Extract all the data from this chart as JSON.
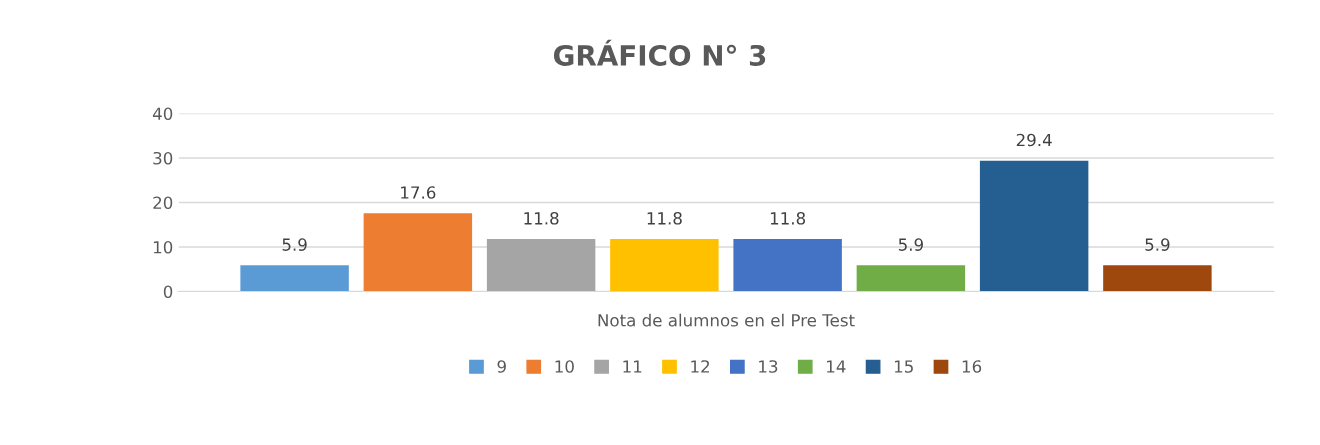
{
  "chart_data": {
    "type": "bar",
    "title": "GRÁFICO N° 3",
    "categories": [
      "Nota de alumnos en el Pre Test"
    ],
    "series": [
      {
        "name": "9",
        "color": "#5b9bd5",
        "values": [
          5.9
        ]
      },
      {
        "name": "10",
        "color": "#ed7d31",
        "values": [
          17.6
        ]
      },
      {
        "name": "11",
        "color": "#a5a5a5",
        "values": [
          11.8
        ]
      },
      {
        "name": "12",
        "color": "#ffc000",
        "values": [
          11.8
        ]
      },
      {
        "name": "13",
        "color": "#4472c4",
        "values": [
          11.8
        ]
      },
      {
        "name": "14",
        "color": "#70ad47",
        "values": [
          5.9
        ]
      },
      {
        "name": "15",
        "color": "#255e91",
        "values": [
          29.4
        ]
      },
      {
        "name": "16",
        "color": "#9e480e",
        "values": [
          5.9
        ]
      }
    ],
    "ylim": [
      0,
      40
    ],
    "yticks": [
      0,
      10,
      20,
      30,
      40
    ],
    "grid": "y",
    "legend": "bottom",
    "data_labels": true
  }
}
